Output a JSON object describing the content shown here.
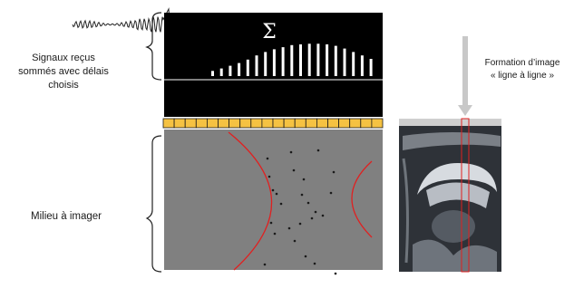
{
  "labels": {
    "signals_line1": "Signaux reçus",
    "signals_line2": "sommés avec délais",
    "signals_line3": "choisis",
    "medium": "Milieu à imager",
    "image_line1": "Formation d’image",
    "image_line2": "« ligne à ligne »",
    "sum_symbol": "Σ"
  },
  "summed_bar_levels": [
    0.15,
    0.22,
    0.3,
    0.38,
    0.48,
    0.6,
    0.7,
    0.78,
    0.84,
    0.9,
    0.92,
    0.94,
    0.94,
    0.92,
    0.88,
    0.8,
    0.7,
    0.6,
    0.5
  ],
  "transducer_element_count": 20,
  "colors": {
    "echo_panel": "#000000",
    "medium": "#808080",
    "transducer": "#f5c242",
    "wavefront": "#e02020",
    "arrow": "#c8c8c8"
  }
}
